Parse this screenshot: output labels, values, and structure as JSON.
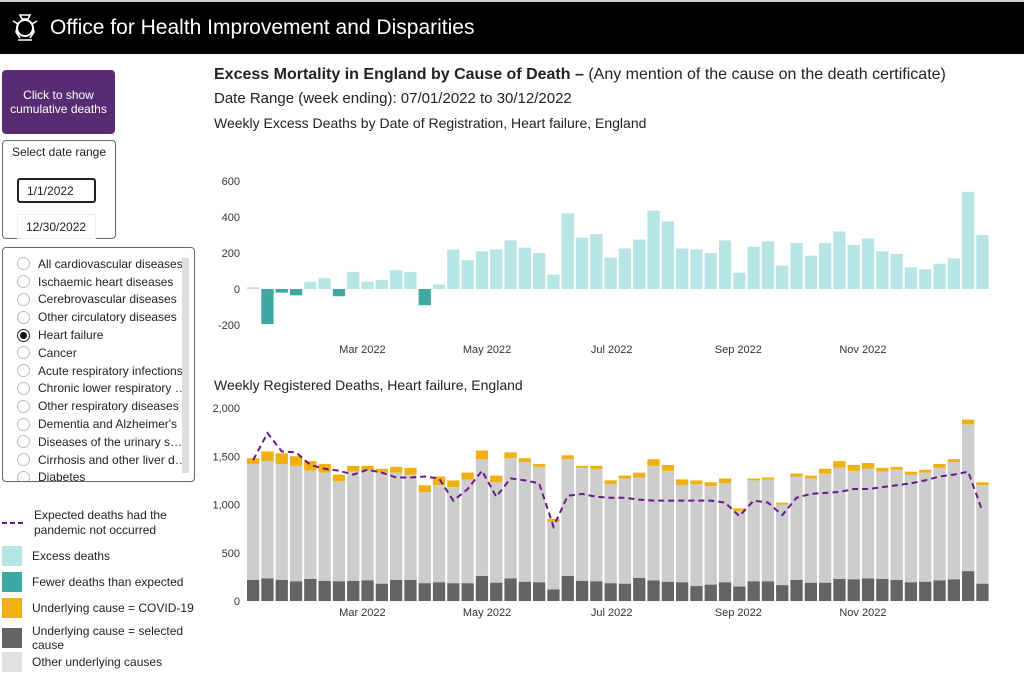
{
  "header": {
    "title": "Office for Health Improvement and Disparities",
    "logo_text": "Royal coat of arms"
  },
  "sidebar": {
    "cumulative_button": "Click to show cumulative deaths",
    "date_range_label": "Select date range",
    "date_start": "1/1/2022",
    "date_end": "12/30/2022",
    "causes": [
      {
        "label": "All cardiovascular diseases",
        "selected": false
      },
      {
        "label": "Ischaemic heart diseases",
        "selected": false
      },
      {
        "label": "Cerebrovascular diseases",
        "selected": false
      },
      {
        "label": "Other circulatory diseases",
        "selected": false
      },
      {
        "label": "Heart failure",
        "selected": true
      },
      {
        "label": "Cancer",
        "selected": false
      },
      {
        "label": "Acute respiratory infections",
        "selected": false
      },
      {
        "label": "Chronic lower respiratory diseases",
        "selected": false
      },
      {
        "label": "Other respiratory diseases",
        "selected": false
      },
      {
        "label": "Dementia and Alzheimer's",
        "selected": false
      },
      {
        "label": "Diseases of the urinary system",
        "selected": false
      },
      {
        "label": "Cirrhosis and other liver diseases",
        "selected": false
      },
      {
        "label": "Diabetes",
        "selected": false
      }
    ]
  },
  "legend": {
    "expected": "Expected deaths had the pandemic not occurred",
    "excess": "Excess deaths",
    "fewer": "Fewer deaths than expected",
    "covid": "Underlying cause  = COVID-19",
    "selected": "Underlying cause = selected cause",
    "other": "Other underlying causes"
  },
  "main": {
    "title_bold": "Excess Mortality in England by Cause of Death –",
    "title_rest": " (Any mention of the cause on the death certificate)",
    "date_range": "Date Range (week ending): 07/01/2022 to 30/12/2022"
  },
  "colors": {
    "excess": "#b7e5e6",
    "fewer": "#3fa8a2",
    "covid": "#f0b011",
    "selected": "#646464",
    "other": "#cdcdcd",
    "expected": "#6a1b8a"
  },
  "chart_data": [
    {
      "type": "bar",
      "title": "Weekly Excess Deaths by Date of Registration, Heart failure, England",
      "x_start": "2022-01-07",
      "x_step_days": 7,
      "x_ticks": [
        {
          "label": "Mar 2022",
          "date": "2022-03-01"
        },
        {
          "label": "May 2022",
          "date": "2022-05-01"
        },
        {
          "label": "Jul 2022",
          "date": "2022-07-01"
        },
        {
          "label": "Sep 2022",
          "date": "2022-09-01"
        },
        {
          "label": "Nov 2022",
          "date": "2022-11-01"
        }
      ],
      "y_ticks": [
        "600",
        "400",
        "200",
        "0",
        "-200"
      ],
      "ylim": [
        -200,
        600
      ],
      "grid": false,
      "values": [
        10,
        -195,
        -20,
        -35,
        40,
        60,
        -40,
        95,
        40,
        50,
        105,
        95,
        -90,
        25,
        220,
        160,
        210,
        220,
        270,
        230,
        200,
        80,
        420,
        285,
        305,
        175,
        225,
        275,
        435,
        375,
        225,
        220,
        200,
        270,
        90,
        235,
        265,
        130,
        255,
        185,
        255,
        320,
        245,
        280,
        210,
        195,
        120,
        110,
        140,
        170,
        540,
        300
      ]
    },
    {
      "type": "bar",
      "stacked": true,
      "title": "Weekly Registered Deaths, Heart failure, England",
      "x_start": "2022-01-07",
      "x_step_days": 7,
      "x_ticks": [
        {
          "label": "Mar 2022",
          "date": "2022-03-01"
        },
        {
          "label": "May 2022",
          "date": "2022-05-01"
        },
        {
          "label": "Jul 2022",
          "date": "2022-07-01"
        },
        {
          "label": "Sep 2022",
          "date": "2022-09-01"
        },
        {
          "label": "Nov 2022",
          "date": "2022-11-01"
        }
      ],
      "y_ticks": [
        "2,000",
        "1,500",
        "1,000",
        "500",
        "0"
      ],
      "ylim": [
        0,
        2000
      ],
      "grid": false,
      "series": [
        {
          "name": "Underlying cause = selected cause",
          "values": [
            220,
            235,
            220,
            205,
            230,
            210,
            205,
            210,
            215,
            180,
            220,
            220,
            185,
            195,
            185,
            185,
            260,
            190,
            235,
            200,
            195,
            120,
            260,
            210,
            205,
            185,
            180,
            240,
            215,
            200,
            195,
            155,
            170,
            195,
            150,
            205,
            205,
            165,
            220,
            190,
            190,
            230,
            225,
            235,
            230,
            220,
            195,
            200,
            215,
            225,
            310,
            180
          ]
        },
        {
          "name": "Other underlying causes",
          "values": [
            1200,
            1215,
            1200,
            1195,
            1120,
            1120,
            1035,
            1130,
            1135,
            1150,
            1110,
            1090,
            945,
            1005,
            995,
            1075,
            1210,
            1040,
            1245,
            1240,
            1195,
            700,
            1210,
            1170,
            1165,
            1025,
            1090,
            1040,
            1185,
            1150,
            1005,
            1055,
            1020,
            1025,
            780,
            1045,
            1055,
            835,
            1070,
            1080,
            1130,
            1150,
            1125,
            1135,
            1110,
            1140,
            1115,
            1130,
            1165,
            1215,
            1520,
            1020
          ]
        },
        {
          "name": "Underlying cause  = COVID-19",
          "values": [
            60,
            100,
            110,
            100,
            100,
            90,
            70,
            60,
            50,
            40,
            60,
            70,
            70,
            90,
            70,
            70,
            90,
            70,
            60,
            40,
            30,
            30,
            40,
            20,
            30,
            40,
            30,
            50,
            70,
            60,
            60,
            40,
            40,
            50,
            30,
            20,
            20,
            20,
            30,
            30,
            50,
            70,
            60,
            60,
            40,
            30,
            30,
            30,
            40,
            30,
            50,
            30
          ]
        }
      ],
      "line": {
        "name": "Expected deaths had the pandemic not occurred",
        "values": [
          1460,
          1740,
          1550,
          1540,
          1410,
          1370,
          1350,
          1310,
          1360,
          1330,
          1280,
          1280,
          1290,
          1270,
          1040,
          1160,
          1350,
          1080,
          1270,
          1250,
          1220,
          770,
          1090,
          1110,
          1080,
          1070,
          1070,
          1050,
          1040,
          1040,
          1040,
          1040,
          1040,
          1020,
          880,
          1040,
          1020,
          890,
          1070,
          1110,
          1120,
          1130,
          1160,
          1160,
          1180,
          1200,
          1220,
          1250,
          1290,
          1310,
          1340,
          930
        ]
      }
    }
  ]
}
